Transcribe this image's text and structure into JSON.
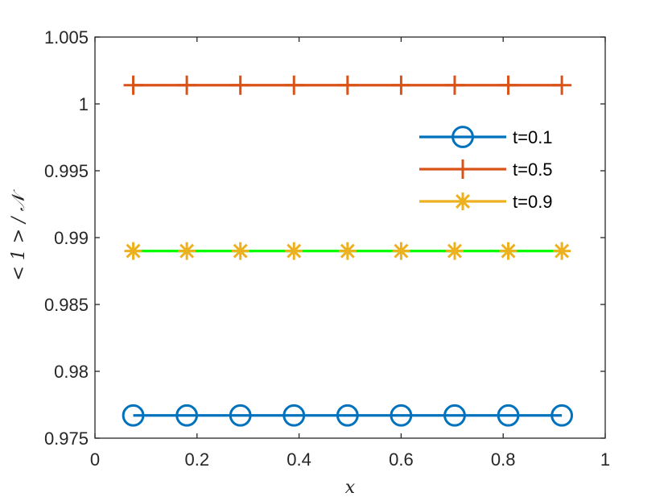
{
  "chart_data": {
    "type": "line",
    "xlabel": "x",
    "ylabel": "< 1 > / 𝒩",
    "xlim": [
      0,
      1
    ],
    "ylim": [
      0.975,
      1.005
    ],
    "xticks": [
      "0",
      "0.2",
      "0.4",
      "0.6",
      "0.8",
      "1"
    ],
    "yticks": [
      "0.975",
      "0.98",
      "0.985",
      "0.99",
      "0.995",
      "1",
      "1.005"
    ],
    "x": [
      0.075,
      0.18,
      0.285,
      0.39,
      0.495,
      0.6,
      0.705,
      0.81,
      0.915
    ],
    "legend_position": "upper-right",
    "grid": false,
    "series": [
      {
        "name": "t=0.1",
        "values": [
          0.9767,
          0.9767,
          0.9767,
          0.9767,
          0.9767,
          0.9767,
          0.9767,
          0.9767,
          0.9767
        ],
        "color": "#0072BD",
        "marker": "circle"
      },
      {
        "name": "t=0.5",
        "values": [
          1.0014,
          1.0014,
          1.0014,
          1.0014,
          1.0014,
          1.0014,
          1.0014,
          1.0014,
          1.0014
        ],
        "color": "#D95319",
        "marker": "plus"
      },
      {
        "name": "t=0.9",
        "values": [
          0.989,
          0.989,
          0.989,
          0.989,
          0.989,
          0.989,
          0.989,
          0.989,
          0.989
        ],
        "color": "#EDB120",
        "line_color": "#00FF00",
        "marker": "asterisk"
      }
    ]
  }
}
